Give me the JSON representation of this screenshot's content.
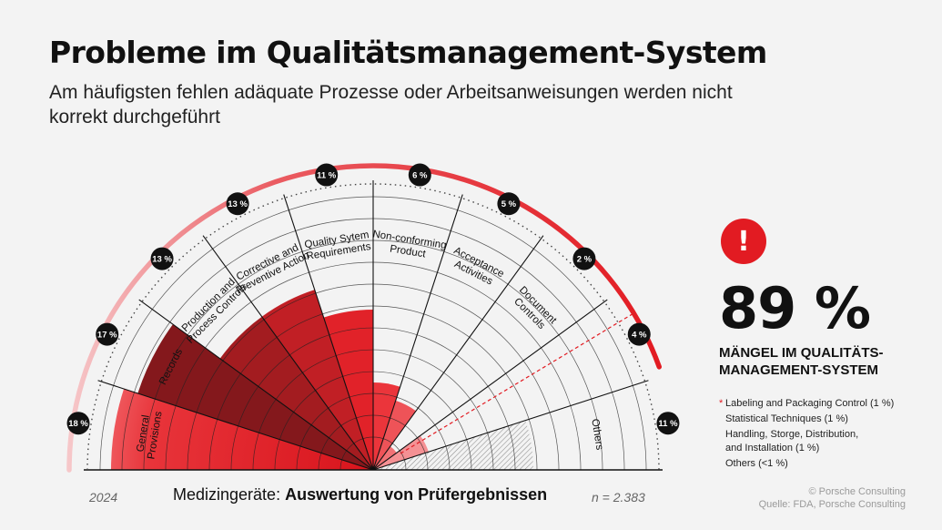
{
  "header": {
    "title": "Probleme im Qualitätsmanagement-System",
    "subtitle": "Am häufigsten fehlen adäquate Prozesse oder Arbeitsanweisungen werden nicht korrekt durchgeführt"
  },
  "chart_data": {
    "type": "radial-bar",
    "unit": "%",
    "categories": [
      {
        "label": "General Provisions",
        "pct_label": "18 %",
        "value": 18
      },
      {
        "label": "Records",
        "pct_label": "17 %",
        "value": 17
      },
      {
        "label": "Production and Process Controls",
        "pct_label": "13 %",
        "value": 13
      },
      {
        "label": "Corrective and Preventive Action",
        "pct_label": "13 %",
        "value": 13
      },
      {
        "label": "Quality Sytem Requirements",
        "pct_label": "11 %",
        "value": 11
      },
      {
        "label": "Non-conforming Product",
        "pct_label": "6 %",
        "value": 6
      },
      {
        "label": "Acceptance Activities",
        "pct_label": "5 %",
        "value": 5
      },
      {
        "label": "Document Controls",
        "pct_label": "2 %",
        "value": 2
      },
      {
        "label": "",
        "pct_label": "4 %",
        "value": 4
      },
      {
        "label": "Others",
        "pct_label": "11 %",
        "value": 11
      }
    ],
    "highlight_share": 89,
    "colors": {
      "accent": "#e21b22",
      "dark": "#111111"
    }
  },
  "highlight": {
    "value": "89 %",
    "label": "MÄNGEL IM QUALITÄTS-MANAGEMENT-SYSTEM",
    "alert_symbol": "!"
  },
  "notes": {
    "star": "*",
    "items": [
      "Labeling and Packaging Control (1 %)",
      "Statistical Techniques (1 %)",
      "Handling, Storge, Distribution,\nand Installation (1 %)",
      "Others (<1 %)"
    ]
  },
  "footer": {
    "year": "2024",
    "title_prefix": "Medizingeräte: ",
    "title_bold": "Auswertung von Prüfergebnissen",
    "n": "n = 2.383",
    "credit": "© Porsche Consulting",
    "source": "Quelle: FDA, Porsche Consulting"
  }
}
